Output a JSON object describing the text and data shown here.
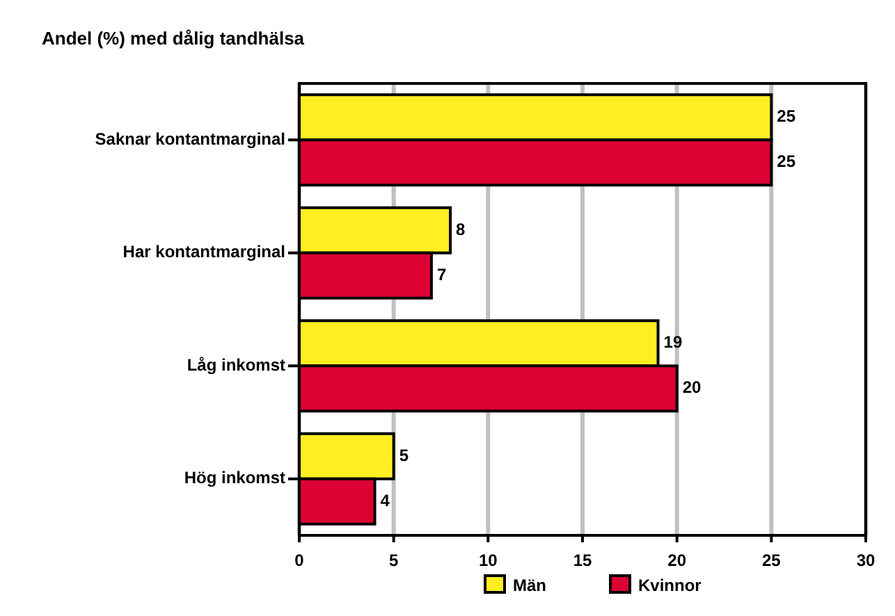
{
  "chart_data": {
    "type": "bar",
    "orientation": "horizontal",
    "title": "Andel (%) med dålig tandhälsa",
    "categories": [
      "Saknar kontantmarginal",
      "Har kontantmarginal",
      "Låg inkomst",
      "Hög inkomst"
    ],
    "series": [
      {
        "name": "Män",
        "color": "#ffee22",
        "values": [
          25,
          8,
          19,
          5
        ]
      },
      {
        "name": "Kvinnor",
        "color": "#dd0033",
        "values": [
          25,
          7,
          20,
          4
        ]
      }
    ],
    "xlim": [
      0,
      30
    ],
    "xticks": [
      0,
      5,
      10,
      15,
      20,
      25,
      30
    ],
    "grid": "x",
    "legend": "bottom",
    "data_labels": true
  }
}
